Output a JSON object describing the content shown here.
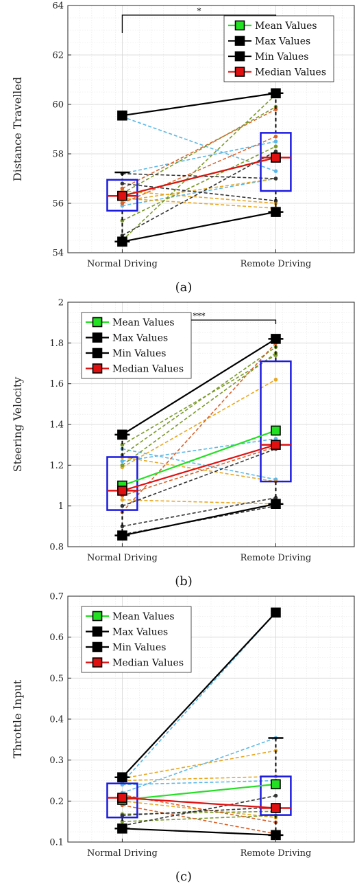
{
  "chart_data": [
    {
      "type": "box-paired",
      "caption": "(a)",
      "ylabel": "Distance Travelled",
      "ylim": [
        54,
        64
      ],
      "yticks": [
        54,
        56,
        58,
        60,
        62,
        64
      ],
      "categories": [
        "Normal Driving",
        "Remote Driving"
      ],
      "grid": true,
      "legend_position": "top-right",
      "significance": "*",
      "boxes": [
        {
          "q1": 55.7,
          "q3": 56.95,
          "median": 56.3,
          "whisker_low": 54.45,
          "whisker_high": 57.25
        },
        {
          "q1": 56.5,
          "q3": 58.85,
          "median": 57.85,
          "whisker_low": 55.65,
          "whisker_high": 60.45
        }
      ],
      "series": [
        {
          "name": "Mean Values",
          "color": "#22e022",
          "values": [
            56.3,
            57.85
          ]
        },
        {
          "name": "Max Values",
          "color": "#000000",
          "values": [
            59.55,
            60.45
          ]
        },
        {
          "name": "Min Values",
          "color": "#000000",
          "values": [
            54.45,
            55.65
          ]
        },
        {
          "name": "Median Values",
          "color": "#e01010",
          "values": [
            56.3,
            57.85
          ]
        }
      ],
      "participants": [
        {
          "color": "#5ab7e6",
          "values": [
            59.5,
            57.3
          ]
        },
        {
          "color": "#5ab7e6",
          "values": [
            57.2,
            58.5
          ]
        },
        {
          "color": "#5ab7e6",
          "values": [
            55.9,
            57.0
          ]
        },
        {
          "color": "#e8a822",
          "values": [
            56.5,
            56.0
          ]
        },
        {
          "color": "#e8a822",
          "values": [
            56.1,
            57.0
          ]
        },
        {
          "color": "#e8a822",
          "values": [
            56.2,
            55.8
          ]
        },
        {
          "color": "#7a9a2a",
          "values": [
            54.5,
            60.4
          ]
        },
        {
          "color": "#7a9a2a",
          "values": [
            55.3,
            58.3
          ]
        },
        {
          "color": "#7a9a2a",
          "values": [
            56.4,
            59.9
          ]
        },
        {
          "color": "#d9622b",
          "values": [
            56.0,
            58.7
          ]
        },
        {
          "color": "#d9622b",
          "values": [
            56.6,
            59.8
          ]
        },
        {
          "color": "#333333",
          "values": [
            57.2,
            57.0
          ]
        },
        {
          "color": "#333333",
          "values": [
            54.7,
            58.1
          ]
        },
        {
          "color": "#333333",
          "values": [
            56.8,
            56.1
          ]
        }
      ]
    },
    {
      "type": "box-paired",
      "caption": "(b)",
      "ylabel": "Steering Velocity",
      "ylim": [
        0.8,
        2.0
      ],
      "yticks": [
        0.8,
        1,
        1.2,
        1.4,
        1.6,
        1.8,
        2
      ],
      "categories": [
        "Normal Driving",
        "Remote Driving"
      ],
      "grid": true,
      "legend_position": "top-left",
      "significance": "***",
      "boxes": [
        {
          "q1": 0.98,
          "q3": 1.24,
          "median": 1.075,
          "whisker_low": 0.855,
          "whisker_high": 1.35
        },
        {
          "q1": 1.12,
          "q3": 1.71,
          "median": 1.3,
          "whisker_low": 1.01,
          "whisker_high": 1.82
        }
      ],
      "series": [
        {
          "name": "Mean Values",
          "color": "#22e022",
          "values": [
            1.1,
            1.37
          ]
        },
        {
          "name": "Max Values",
          "color": "#000000",
          "values": [
            1.35,
            1.82
          ]
        },
        {
          "name": "Min Values",
          "color": "#000000",
          "values": [
            0.855,
            1.01
          ]
        },
        {
          "name": "Median Values",
          "color": "#e01010",
          "values": [
            1.075,
            1.3
          ]
        }
      ],
      "participants": [
        {
          "color": "#5ab7e6",
          "values": [
            1.28,
            1.13
          ]
        },
        {
          "color": "#5ab7e6",
          "values": [
            1.22,
            1.33
          ]
        },
        {
          "color": "#e8a822",
          "values": [
            1.24,
            1.12
          ]
        },
        {
          "color": "#e8a822",
          "values": [
            1.03,
            1.01
          ]
        },
        {
          "color": "#e8a822",
          "values": [
            1.19,
            1.62
          ]
        },
        {
          "color": "#7a9a2a",
          "values": [
            1.2,
            1.75
          ]
        },
        {
          "color": "#7a9a2a",
          "values": [
            1.3,
            1.74
          ]
        },
        {
          "color": "#7a9a2a",
          "values": [
            1.25,
            1.78
          ]
        },
        {
          "color": "#d9622b",
          "values": [
            0.97,
            1.8
          ]
        },
        {
          "color": "#d9622b",
          "values": [
            1.05,
            1.29
          ]
        },
        {
          "color": "#333333",
          "values": [
            1.0,
            1.28
          ]
        },
        {
          "color": "#333333",
          "values": [
            0.9,
            1.04
          ]
        },
        {
          "color": "#333333",
          "values": [
            0.86,
            1.0
          ]
        }
      ]
    },
    {
      "type": "box-paired",
      "caption": "(c)",
      "ylabel": "Throttle Input",
      "ylim": [
        0.1,
        0.7
      ],
      "yticks": [
        0.1,
        0.2,
        0.3,
        0.4,
        0.5,
        0.6,
        0.7
      ],
      "categories": [
        "Normal Driving",
        "Remote Driving"
      ],
      "grid": true,
      "legend_position": "top-left",
      "significance": "",
      "boxes": [
        {
          "q1": 0.16,
          "q3": 0.243,
          "median": 0.208,
          "whisker_low": 0.133,
          "whisker_high": 0.258
        },
        {
          "q1": 0.166,
          "q3": 0.26,
          "median": 0.183,
          "whisker_low": 0.117,
          "whisker_high": 0.354
        }
      ],
      "series": [
        {
          "name": "Mean Values",
          "color": "#22e022",
          "values": [
            0.203,
            0.241
          ]
        },
        {
          "name": "Max Values",
          "color": "#000000",
          "values": [
            0.258,
            0.66
          ]
        },
        {
          "name": "Min Values",
          "color": "#000000",
          "values": [
            0.133,
            0.117
          ]
        },
        {
          "name": "Median Values",
          "color": "#e01010",
          "values": [
            0.208,
            0.183
          ]
        }
      ],
      "participants": [
        {
          "color": "#5ab7e6",
          "values": [
            0.245,
            0.66
          ]
        },
        {
          "color": "#5ab7e6",
          "values": [
            0.22,
            0.354
          ]
        },
        {
          "color": "#5ab7e6",
          "values": [
            0.24,
            0.25
          ]
        },
        {
          "color": "#e8a822",
          "values": [
            0.255,
            0.323
          ]
        },
        {
          "color": "#e8a822",
          "values": [
            0.25,
            0.26
          ]
        },
        {
          "color": "#e8a822",
          "values": [
            0.2,
            0.16
          ]
        },
        {
          "color": "#7a9a2a",
          "values": [
            0.168,
            0.175
          ]
        },
        {
          "color": "#7a9a2a",
          "values": [
            0.15,
            0.165
          ]
        },
        {
          "color": "#d9622b",
          "values": [
            0.215,
            0.148
          ]
        },
        {
          "color": "#d9622b",
          "values": [
            0.19,
            0.12
          ]
        },
        {
          "color": "#333333",
          "values": [
            0.14,
            0.213
          ]
        },
        {
          "color": "#333333",
          "values": [
            0.165,
            0.185
          ]
        }
      ]
    }
  ]
}
